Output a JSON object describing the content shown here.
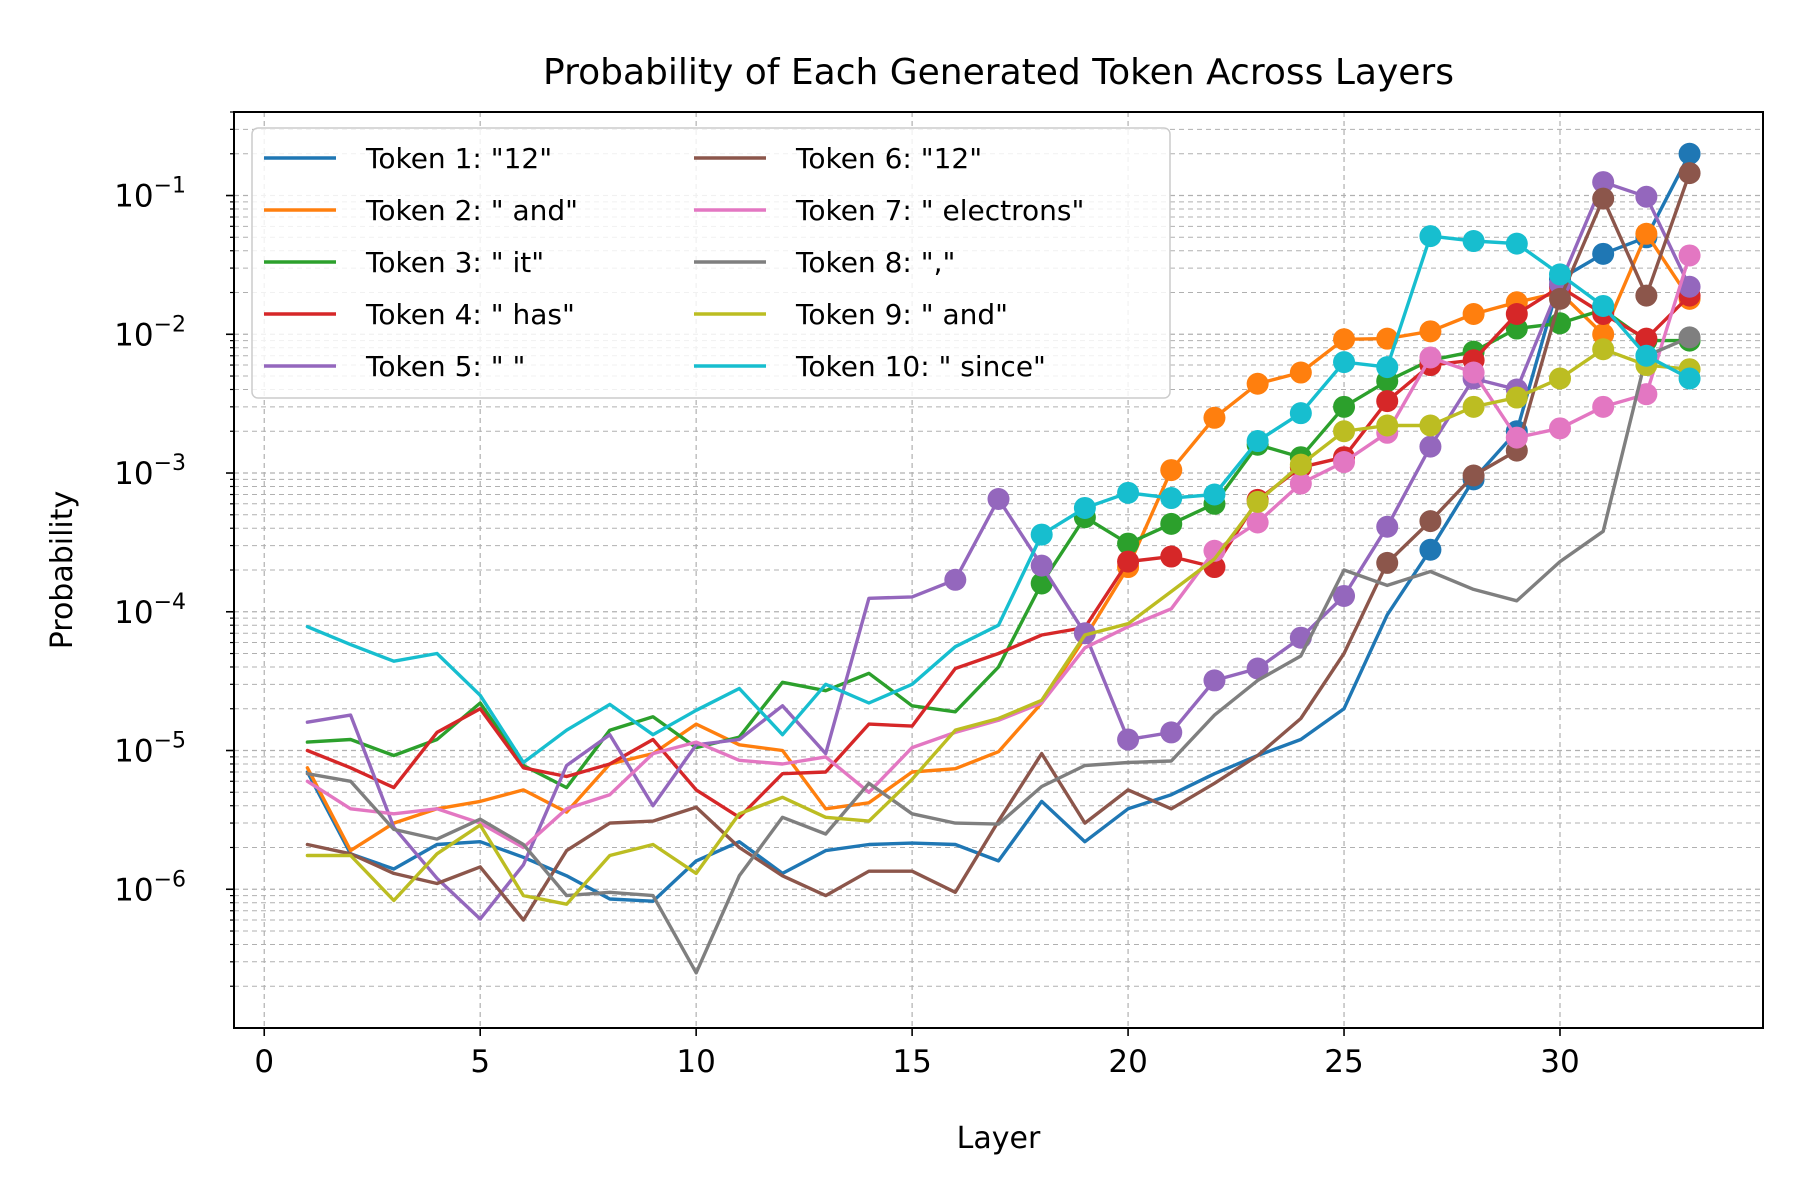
{
  "chart_data": {
    "type": "line",
    "title": "Probability of Each Generated Token Across Layers",
    "xlabel": "Layer",
    "ylabel": "Probability",
    "yscale": "log",
    "xlim": [
      -0.7,
      34.7
    ],
    "ylim": [
      1e-07,
      0.4
    ],
    "xticks": [
      0,
      5,
      10,
      15,
      20,
      25,
      30
    ],
    "yticks": [
      {
        "value": 1e-06,
        "base": "10",
        "exp": "−6"
      },
      {
        "value": 1e-05,
        "base": "10",
        "exp": "−5"
      },
      {
        "value": 0.0001,
        "base": "10",
        "exp": "−4"
      },
      {
        "value": 0.001,
        "base": "10",
        "exp": "−3"
      },
      {
        "value": 0.01,
        "base": "10",
        "exp": "−2"
      },
      {
        "value": 0.1,
        "base": "10",
        "exp": "−1"
      }
    ],
    "grid": true,
    "legend_placement": "top-left",
    "legend_columns": 2,
    "x": [
      1,
      2,
      3,
      4,
      5,
      6,
      7,
      8,
      9,
      10,
      11,
      12,
      13,
      14,
      15,
      16,
      17,
      18,
      19,
      20,
      21,
      22,
      23,
      24,
      25,
      26,
      27,
      28,
      29,
      30,
      31,
      32,
      33
    ],
    "series": [
      {
        "name": "Token 1: \"12\"",
        "color": "#1f77b4",
        "values": [
          7e-06,
          1.8e-06,
          1.4e-06,
          2.1e-06,
          2.2e-06,
          1.7e-06,
          1.25e-06,
          8.5e-07,
          8.2e-07,
          1.6e-06,
          2.2e-06,
          1.3e-06,
          1.9e-06,
          2.1e-06,
          2.15e-06,
          2.1e-06,
          1.6e-06,
          4.3e-06,
          2.2e-06,
          3.8e-06,
          4.8e-06,
          6.8e-06,
          9.2e-06,
          1.2e-05,
          2e-05,
          9.5e-05,
          0.00028,
          0.0009,
          0.002,
          0.025,
          0.038,
          0.05,
          0.2
        ],
        "markers_from": 27
      },
      {
        "name": "Token 2: \" and\"",
        "color": "#ff7f0e",
        "values": [
          7.5e-06,
          1.9e-06,
          3e-06,
          3.8e-06,
          4.3e-06,
          5.2e-06,
          3.6e-06,
          8e-06,
          9.5e-06,
          1.55e-05,
          1.1e-05,
          1e-05,
          3.8e-06,
          4.2e-06,
          7e-06,
          7.4e-06,
          9.8e-06,
          2.2e-05,
          6.5e-05,
          0.00021,
          0.00105,
          0.0025,
          0.0044,
          0.0053,
          0.0092,
          0.0093,
          0.0105,
          0.014,
          0.017,
          0.02,
          0.01,
          0.053,
          0.018
        ],
        "markers_from": 20
      },
      {
        "name": "Token 3: \" it\"",
        "color": "#2ca02c",
        "values": [
          1.15e-05,
          1.2e-05,
          9.2e-06,
          1.2e-05,
          2.2e-05,
          7.8e-06,
          5.4e-06,
          1.4e-05,
          1.75e-05,
          1.05e-05,
          1.25e-05,
          3.1e-05,
          2.7e-05,
          3.6e-05,
          2.1e-05,
          1.9e-05,
          4e-05,
          0.00016,
          0.00048,
          0.00031,
          0.00043,
          0.0006,
          0.0016,
          0.0013,
          0.003,
          0.0046,
          0.0065,
          0.0075,
          0.011,
          0.012,
          0.015,
          0.009,
          0.009
        ],
        "markers_from": 18
      },
      {
        "name": "Token 4: \" has\"",
        "color": "#d62728",
        "values": [
          1e-05,
          7.5e-06,
          5.4e-06,
          1.35e-05,
          2e-05,
          7.5e-06,
          6.5e-06,
          8e-06,
          1.2e-05,
          5.2e-06,
          3.3e-06,
          6.8e-06,
          7e-06,
          1.55e-05,
          1.5e-05,
          3.9e-05,
          5e-05,
          6.8e-05,
          7.7e-05,
          0.00023,
          0.00025,
          0.00021,
          0.00064,
          0.0011,
          0.0013,
          0.0033,
          0.006,
          0.0065,
          0.014,
          0.022,
          0.014,
          0.0093,
          0.019
        ],
        "markers_from": 20
      },
      {
        "name": "Token 5: \" \"",
        "color": "#9467bd",
        "values": [
          1.6e-05,
          1.8e-05,
          2.8e-06,
          1.2e-06,
          6.1e-07,
          1.5e-06,
          7.8e-06,
          1.3e-05,
          4e-06,
          1.1e-05,
          1.2e-05,
          2.1e-05,
          9.5e-06,
          0.000125,
          0.000128,
          0.00017,
          0.00065,
          0.000215,
          7e-05,
          1.2e-05,
          1.35e-05,
          3.2e-05,
          3.9e-05,
          6.5e-05,
          0.00013,
          0.00041,
          0.00155,
          0.0048,
          0.004,
          0.023,
          0.125,
          0.098,
          0.022
        ],
        "markers_from": 16
      },
      {
        "name": "Token 6: \"12\"",
        "color": "#8c564b",
        "values": [
          2.1e-06,
          1.8e-06,
          1.3e-06,
          1.1e-06,
          1.45e-06,
          6e-07,
          1.9e-06,
          3e-06,
          3.1e-06,
          3.9e-06,
          2e-06,
          1.25e-06,
          9e-07,
          1.35e-06,
          1.35e-06,
          9.5e-07,
          3.1e-06,
          9.5e-06,
          3e-06,
          5.2e-06,
          3.8e-06,
          5.8e-06,
          9.2e-06,
          1.7e-05,
          5e-05,
          0.000225,
          0.00045,
          0.00096,
          0.00145,
          0.018,
          0.095,
          0.019,
          0.145
        ],
        "markers_from": 26
      },
      {
        "name": "Token 7: \" electrons\"",
        "color": "#e377c2",
        "values": [
          6e-06,
          3.8e-06,
          3.5e-06,
          3.8e-06,
          3e-06,
          2e-06,
          3.8e-06,
          4.8e-06,
          9.5e-06,
          1.15e-05,
          8.5e-06,
          8e-06,
          9e-06,
          5e-06,
          1.05e-05,
          1.35e-05,
          1.65e-05,
          2.2e-05,
          5.5e-05,
          7.8e-05,
          0.000105,
          0.000275,
          0.00044,
          0.00084,
          0.0012,
          0.00195,
          0.0068,
          0.0053,
          0.0018,
          0.0021,
          0.003,
          0.0037,
          0.037
        ],
        "markers_from": 22
      },
      {
        "name": "Token 8: \",\"",
        "color": "#7f7f7f",
        "values": [
          6.8e-06,
          6e-06,
          2.7e-06,
          2.3e-06,
          3.2e-06,
          2.1e-06,
          9e-07,
          9.5e-07,
          9e-07,
          2.5e-07,
          1.25e-06,
          3.3e-06,
          2.5e-06,
          5.8e-06,
          3.5e-06,
          3e-06,
          2.95e-06,
          5.5e-06,
          7.8e-06,
          8.2e-06,
          8.4e-06,
          1.8e-05,
          3.2e-05,
          4.8e-05,
          0.0002,
          0.000155,
          0.000195,
          0.000145,
          0.00012,
          0.00023,
          0.00038,
          0.007,
          0.0095
        ],
        "markers_from": 33
      },
      {
        "name": "Token 9: \" and\"",
        "color": "#bcbd22",
        "values": [
          1.75e-06,
          1.75e-06,
          8.3e-07,
          1.8e-06,
          2.9e-06,
          9e-07,
          7.8e-07,
          1.75e-06,
          2.1e-06,
          1.3e-06,
          3.5e-06,
          4.6e-06,
          3.3e-06,
          3.1e-06,
          6.2e-06,
          1.4e-05,
          1.7e-05,
          2.3e-05,
          6.8e-05,
          8.2e-05,
          0.00014,
          0.00024,
          0.00062,
          0.00115,
          0.002,
          0.0022,
          0.0022,
          0.003,
          0.0035,
          0.0048,
          0.0078,
          0.006,
          0.0056
        ],
        "markers_from": 23
      },
      {
        "name": "Token 10: \" since\"",
        "color": "#17becf",
        "values": [
          7.8e-05,
          5.8e-05,
          4.4e-05,
          5e-05,
          2.5e-05,
          8.2e-06,
          1.4e-05,
          2.15e-05,
          1.3e-05,
          1.95e-05,
          2.8e-05,
          1.3e-05,
          3e-05,
          2.2e-05,
          3e-05,
          5.6e-05,
          8e-05,
          0.00036,
          0.00056,
          0.00072,
          0.00066,
          0.0007,
          0.0017,
          0.0027,
          0.0063,
          0.0058,
          0.051,
          0.047,
          0.045,
          0.027,
          0.016,
          0.007,
          0.0048
        ],
        "markers_from": 18
      }
    ]
  }
}
